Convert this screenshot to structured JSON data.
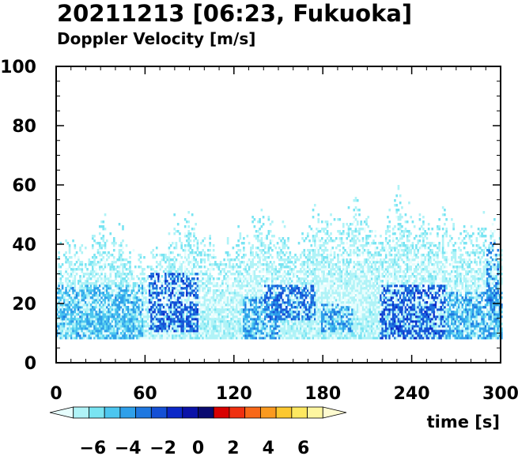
{
  "header": {
    "title": "20211213 [06:23, Fukuoka]",
    "subtitle": "Doppler Velocity [m/s]"
  },
  "chart_data": {
    "type": "heatmap",
    "title": "20211213 [06:23, Fukuoka]",
    "subtitle": "Doppler Velocity [m/s]",
    "xlabel": "time [s]",
    "ylabel": "",
    "xlim": [
      0,
      300
    ],
    "ylim": [
      0,
      100
    ],
    "x_ticks": [
      0,
      60,
      120,
      180,
      240,
      300
    ],
    "y_ticks": [
      0,
      20,
      40,
      60,
      80,
      100
    ],
    "grid": false,
    "colorbar": {
      "range": [
        -8,
        8
      ],
      "tick_values": [
        -6,
        -4,
        -2,
        0,
        2,
        4,
        6
      ],
      "tick_labels": [
        "−6",
        "−4",
        "−2",
        "0",
        "2",
        "4",
        "6"
      ],
      "colors": [
        "#e6fdfd",
        "#b0f3f7",
        "#79e4f2",
        "#4cc6ef",
        "#2fa0ea",
        "#1f78e0",
        "#1450d6",
        "#0b28c8",
        "#0a12a8",
        "#0a0a70",
        "#d80000",
        "#f03010",
        "#f86818",
        "#fa9a20",
        "#fcc830",
        "#fde860",
        "#fdf6a0",
        "#fefbd0"
      ]
    },
    "data_floor_height": 8,
    "echo_top_profile": [
      {
        "t": 0,
        "top": 36
      },
      {
        "t": 10,
        "top": 42
      },
      {
        "t": 20,
        "top": 38
      },
      {
        "t": 30,
        "top": 50
      },
      {
        "t": 40,
        "top": 44
      },
      {
        "t": 50,
        "top": 38
      },
      {
        "t": 60,
        "top": 36
      },
      {
        "t": 70,
        "top": 42
      },
      {
        "t": 80,
        "top": 46
      },
      {
        "t": 90,
        "top": 50
      },
      {
        "t": 100,
        "top": 42
      },
      {
        "t": 110,
        "top": 40
      },
      {
        "t": 120,
        "top": 44
      },
      {
        "t": 130,
        "top": 46
      },
      {
        "t": 140,
        "top": 52
      },
      {
        "t": 150,
        "top": 44
      },
      {
        "t": 160,
        "top": 42
      },
      {
        "t": 170,
        "top": 48
      },
      {
        "t": 180,
        "top": 52
      },
      {
        "t": 190,
        "top": 46
      },
      {
        "t": 200,
        "top": 56
      },
      {
        "t": 210,
        "top": 50
      },
      {
        "t": 220,
        "top": 48
      },
      {
        "t": 230,
        "top": 58
      },
      {
        "t": 240,
        "top": 52
      },
      {
        "t": 250,
        "top": 48
      },
      {
        "t": 260,
        "top": 50
      },
      {
        "t": 270,
        "top": 46
      },
      {
        "t": 280,
        "top": 48
      },
      {
        "t": 290,
        "top": 52
      },
      {
        "t": 300,
        "top": 44
      }
    ],
    "strong_echo_regions": [
      {
        "t_start": 0,
        "t_end": 58,
        "h_start": 8,
        "h_end": 26,
        "velocity": -4.5
      },
      {
        "t_start": 62,
        "t_end": 95,
        "h_start": 10,
        "h_end": 30,
        "velocity": -2.5
      },
      {
        "t_start": 125,
        "t_end": 150,
        "h_start": 8,
        "h_end": 22,
        "velocity": -4.0
      },
      {
        "t_start": 140,
        "t_end": 175,
        "h_start": 14,
        "h_end": 26,
        "velocity": -2.8
      },
      {
        "t_start": 178,
        "t_end": 200,
        "h_start": 10,
        "h_end": 20,
        "velocity": -4.0
      },
      {
        "t_start": 218,
        "t_end": 262,
        "h_start": 8,
        "h_end": 26,
        "velocity": -2.5
      },
      {
        "t_start": 262,
        "t_end": 300,
        "h_start": 8,
        "h_end": 24,
        "velocity": -4.2
      },
      {
        "t_start": 290,
        "t_end": 298,
        "h_start": 20,
        "h_end": 40,
        "velocity": -3.5
      }
    ]
  }
}
